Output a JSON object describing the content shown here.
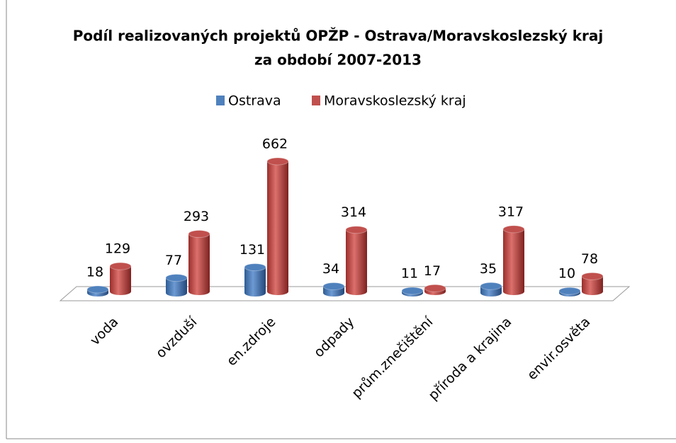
{
  "chart_data": {
    "type": "bar3d",
    "title": "Podíl realizovaných projektů OPŽP  - Ostrava/Moravskoslezský kraj",
    "subtitle": "za období 2007-2013",
    "categories": [
      "voda",
      "ovzduší",
      "en.zdroje",
      "odpady",
      "prům.znečištění",
      "příroda a krajina",
      "envir.osvěta"
    ],
    "series": [
      {
        "name": "Ostrava",
        "color": "#4f81bd",
        "values": [
          18,
          77,
          131,
          34,
          11,
          35,
          10
        ]
      },
      {
        "name": "Moravskoslezský kraj",
        "color": "#c0504d",
        "values": [
          129,
          293,
          662,
          314,
          17,
          317,
          78
        ]
      }
    ],
    "legend": "top"
  }
}
